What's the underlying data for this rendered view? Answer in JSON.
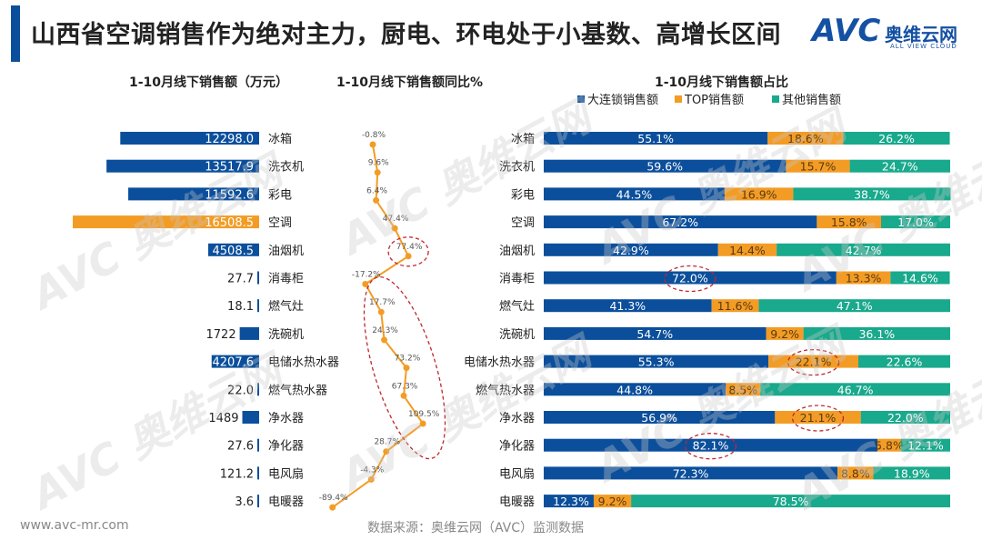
{
  "header": {
    "title": "山西省空调销售作为绝对主力，厨电、环电处于小基数、高增长区间",
    "logo_text": "AVC",
    "logo_cn": "奥维云网",
    "logo_en": "ALL VIEW CLOUD"
  },
  "watermark": {
    "text": "AVC 奥维云网"
  },
  "footer": {
    "url": "www.avc-mr.com",
    "source": "数据来源：奥维云网（AVC）监测数据"
  },
  "colors": {
    "blue": "#0b4f9c",
    "orange": "#f39c25",
    "green": "#19a98c",
    "ellipse": "#c0272d"
  },
  "chart_data": [
    {
      "type": "bar",
      "orientation": "horizontal",
      "title": "1-10月线下销售额（万元）",
      "categories": [
        "冰箱",
        "洗衣机",
        "彩电",
        "空调",
        "油烟机",
        "消毒柜",
        "燃气灶",
        "洗碗机",
        "电储水热水器",
        "燃气热水器",
        "净水器",
        "净化器",
        "电风扇",
        "电暖器"
      ],
      "values": [
        12298.0,
        13517.9,
        11592.6,
        16508.5,
        4508.5,
        27.7,
        18.1,
        1722,
        4207.6,
        22.0,
        1489,
        27.6,
        121.2,
        3.6
      ],
      "labels": [
        "12298.0",
        "13517.9",
        "11592.6",
        "16508.5",
        "4508.5",
        "27.7",
        "18.1",
        "1722",
        "4207.6",
        "22.0",
        "1489",
        "27.6",
        "121.2",
        "3.6"
      ],
      "highlight_category": "空调"
    },
    {
      "type": "line",
      "title": "1-10月线下销售额同比%",
      "categories": [
        "冰箱",
        "洗衣机",
        "彩电",
        "空调",
        "油烟机",
        "消毒柜",
        "燃气灶",
        "洗碗机",
        "电储水热水器",
        "燃气热水器",
        "净水器",
        "净化器",
        "电风扇",
        "电暖器"
      ],
      "values": [
        -0.8,
        9.6,
        6.4,
        47.4,
        77.4,
        -17.2,
        17.7,
        24.3,
        73.2,
        67.3,
        109.5,
        28.7,
        -4.3,
        -89.4
      ],
      "labels": [
        "-0.8%",
        "9.6%",
        "6.4%",
        "47.4%",
        "77.4%",
        "-17.2%",
        "17.7%",
        "24.3%",
        "73.2%",
        "67.3%",
        "109.5%",
        "28.7%",
        "-4.3%",
        "-89.4%"
      ]
    },
    {
      "type": "bar",
      "orientation": "horizontal",
      "stacked": "percent",
      "title": "1-10月线下销售额占比",
      "legend_position": "top",
      "categories": [
        "冰箱",
        "洗衣机",
        "彩电",
        "空调",
        "油烟机",
        "消毒柜",
        "燃气灶",
        "洗碗机",
        "电储水热水器",
        "燃气热水器",
        "净水器",
        "净化器",
        "电风扇",
        "电暖器"
      ],
      "series": [
        {
          "name": "大连锁销售额",
          "values": [
            55.1,
            59.6,
            44.5,
            67.2,
            42.9,
            72.0,
            41.3,
            54.7,
            55.3,
            44.8,
            56.9,
            82.1,
            72.3,
            12.3
          ],
          "labels": [
            "55.1%",
            "59.6%",
            "44.5%",
            "67.2%",
            "42.9%",
            "72.0%",
            "41.3%",
            "54.7%",
            "55.3%",
            "44.8%",
            "56.9%",
            "82.1%",
            "72.3%",
            "12.3%"
          ]
        },
        {
          "name": "TOP销售额",
          "values": [
            18.6,
            15.7,
            16.9,
            15.8,
            14.4,
            13.3,
            11.6,
            9.2,
            22.1,
            8.5,
            21.1,
            5.8,
            8.8,
            9.2
          ],
          "labels": [
            "18.6%",
            "15.7%",
            "16.9%",
            "15.8%",
            "14.4%",
            "13.3%",
            "11.6%",
            "9.2%",
            "22.1%",
            "8.5%",
            "21.1%",
            "5.8%",
            "8.8%",
            "9.2%"
          ]
        },
        {
          "name": "其他销售额",
          "values": [
            26.2,
            24.7,
            38.7,
            17.0,
            42.7,
            14.6,
            47.1,
            36.1,
            22.6,
            46.7,
            22.0,
            12.1,
            18.9,
            78.5
          ],
          "labels": [
            "26.2%",
            "24.7%",
            "38.7%",
            "17.0%",
            "42.7%",
            "14.6%",
            "47.1%",
            "36.1%",
            "22.6%",
            "46.7%",
            "22.0%",
            "12.1%",
            "18.9%",
            "78.5%"
          ]
        }
      ]
    }
  ]
}
